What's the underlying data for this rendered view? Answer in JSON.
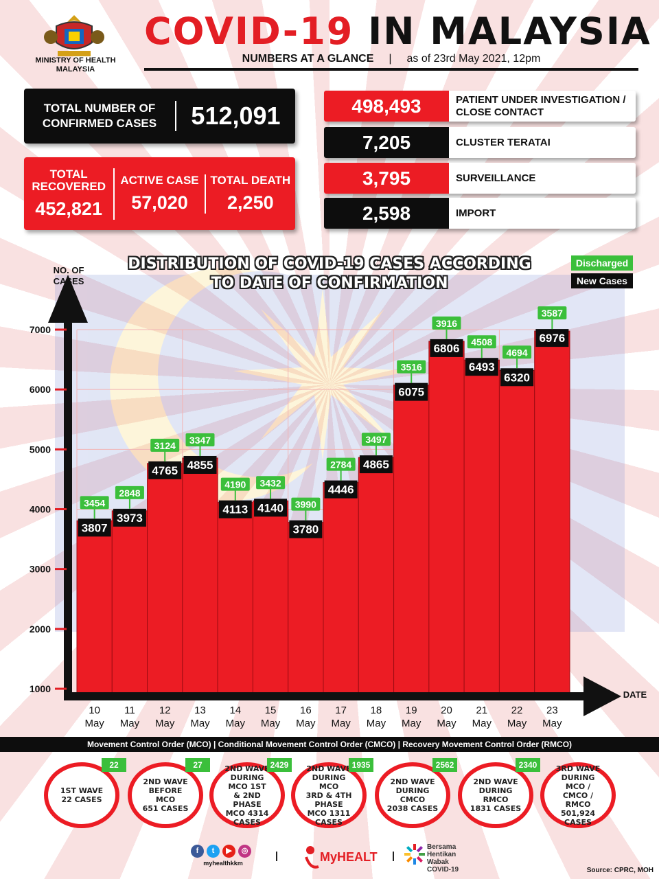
{
  "header": {
    "ministry": "MINISTRY OF HEALTH MALAYSIA",
    "title_red": "COVID-19",
    "title_black": "IN MALAYSIA",
    "subtitle_left": "NUMBERS AT A GLANCE",
    "subtitle_divider": "|",
    "subtitle_right": "as of 23rd May 2021, 12pm"
  },
  "totals": {
    "confirmed_label": "TOTAL NUMBER OF CONFIRMED CASES",
    "confirmed_value": "512,091",
    "recovered_label": "TOTAL RECOVERED",
    "recovered_value": "452,821",
    "active_label": "ACTIVE CASE",
    "active_value": "57,020",
    "death_label": "TOTAL DEATH",
    "death_value": "2,250"
  },
  "categories": [
    {
      "value": "498,493",
      "label": "PATIENT UNDER INVESTIGATION / CLOSE CONTACT"
    },
    {
      "value": "7,205",
      "label": "CLUSTER TERATAI"
    },
    {
      "value": "3,795",
      "label": "SURVEILLANCE"
    },
    {
      "value": "2,598",
      "label": "IMPORT"
    }
  ],
  "colors": {
    "red": "#ec1c24",
    "black": "#0d0d0d",
    "green": "#3bbf3b"
  },
  "chart_data": {
    "type": "bar",
    "title": "DISTRIBUTION OF COVID-19 CASES ACCORDING TO DATE OF CONFIRMATION",
    "ylabel": "NO. OF CASES",
    "xlabel": "DATE",
    "ylim": [
      1000,
      7000
    ],
    "yticks": [
      1000,
      2000,
      3000,
      4000,
      5000,
      6000,
      7000
    ],
    "categories": [
      "10 May",
      "11 May",
      "12 May",
      "13 May",
      "14 May",
      "15 May",
      "16 May",
      "17 May",
      "18 May",
      "19 May",
      "20 May",
      "21 May",
      "22 May",
      "23 May"
    ],
    "series": [
      {
        "name": "New Cases",
        "values": [
          3807,
          3973,
          4765,
          4855,
          4113,
          4140,
          3780,
          4446,
          4865,
          6075,
          6806,
          6493,
          6320,
          6976
        ]
      },
      {
        "name": "Discharged",
        "values": [
          3454,
          2848,
          3124,
          3347,
          4190,
          3432,
          3990,
          2784,
          3497,
          3516,
          3916,
          4508,
          4694,
          3587
        ]
      }
    ],
    "legend": [
      "Discharged",
      "New Cases"
    ],
    "legend_position": "top-right"
  },
  "periods": "Movement Control Order (MCO) | Conditional Movement Control Order (CMCO) | Recovery Movement Control Order (RMCO)",
  "waves": [
    {
      "text": "1ST WAVE\n22 CASES",
      "badge": "22"
    },
    {
      "text": "2ND WAVE\nBEFORE MCO\n651 CASES",
      "badge": "27"
    },
    {
      "text": "2ND WAVE\nDURING MCO 1ST\n& 2ND PHASE\nMCO 4314\nCASES",
      "badge": "2429"
    },
    {
      "text": "2ND WAVE\nDURING MCO\n3RD & 4TH PHASE\nMCO 1311\nCASES",
      "badge": "1935"
    },
    {
      "text": "2ND WAVE\nDURING CMCO\n2038 CASES",
      "badge": "2562"
    },
    {
      "text": "2ND WAVE\nDURING RMCO\n1831 CASES",
      "badge": "2340"
    },
    {
      "text": "3RD WAVE\nDURING MCO /\nCMCO / RMCO\n501,924\nCASES",
      "badge": ""
    }
  ],
  "footer": {
    "social_handle": "myhealthkkm",
    "myhealth": "MyHEALTH",
    "campaign": "Bersama\nHentikan\nWabak\nCOVID-19",
    "source": "Source: CPRC, MOH"
  }
}
